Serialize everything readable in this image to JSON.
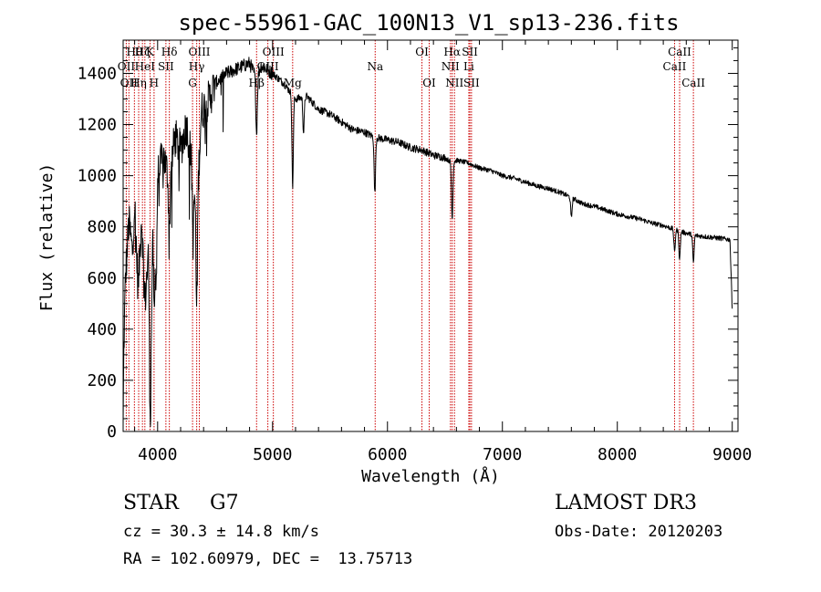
{
  "chart_data": {
    "type": "line",
    "title": "spec-55961-GAC_100N13_V1_sp13-236.fits",
    "xlabel": "Wavelength (Å)",
    "ylabel": "Flux (relative)",
    "xlim": [
      3700,
      9050
    ],
    "ylim": [
      0,
      1530
    ],
    "xticks": [
      4000,
      5000,
      6000,
      7000,
      8000,
      9000
    ],
    "yticks": [
      0,
      200,
      400,
      600,
      800,
      1000,
      1200,
      1400
    ],
    "continuum": [
      [
        3700,
        0
      ],
      [
        3705,
        300
      ],
      [
        3720,
        600
      ],
      [
        3750,
        820
      ],
      [
        3780,
        700
      ],
      [
        3800,
        900
      ],
      [
        3830,
        550
      ],
      [
        3860,
        850
      ],
      [
        3890,
        500
      ],
      [
        3920,
        700
      ],
      [
        3940,
        300
      ],
      [
        3960,
        820
      ],
      [
        3990,
        600
      ],
      [
        4000,
        1000
      ],
      [
        4050,
        1080
      ],
      [
        4100,
        980
      ],
      [
        4150,
        1150
      ],
      [
        4200,
        1100
      ],
      [
        4250,
        1200
      ],
      [
        4300,
        1050
      ],
      [
        4340,
        850
      ],
      [
        4380,
        1250
      ],
      [
        4450,
        1300
      ],
      [
        4500,
        1360
      ],
      [
        4600,
        1400
      ],
      [
        4700,
        1420
      ],
      [
        4800,
        1440
      ],
      [
        4860,
        1380
      ],
      [
        4900,
        1430
      ],
      [
        5000,
        1400
      ],
      [
        5100,
        1360
      ],
      [
        5200,
        1300
      ],
      [
        5300,
        1310
      ],
      [
        5400,
        1260
      ],
      [
        5500,
        1240
      ],
      [
        5600,
        1210
      ],
      [
        5700,
        1180
      ],
      [
        5800,
        1170
      ],
      [
        5890,
        1150
      ],
      [
        6000,
        1140
      ],
      [
        6100,
        1130
      ],
      [
        6200,
        1110
      ],
      [
        6300,
        1100
      ],
      [
        6400,
        1080
      ],
      [
        6500,
        1070
      ],
      [
        6563,
        1050
      ],
      [
        6600,
        1060
      ],
      [
        6700,
        1050
      ],
      [
        6800,
        1030
      ],
      [
        6900,
        1020
      ],
      [
        7000,
        1000
      ],
      [
        7100,
        990
      ],
      [
        7200,
        975
      ],
      [
        7300,
        960
      ],
      [
        7400,
        950
      ],
      [
        7500,
        935
      ],
      [
        7600,
        915
      ],
      [
        7700,
        890
      ],
      [
        7800,
        880
      ],
      [
        7900,
        865
      ],
      [
        8000,
        850
      ],
      [
        8100,
        840
      ],
      [
        8200,
        830
      ],
      [
        8300,
        815
      ],
      [
        8400,
        805
      ],
      [
        8500,
        790
      ],
      [
        8600,
        775
      ],
      [
        8700,
        765
      ],
      [
        8800,
        760
      ],
      [
        8900,
        755
      ],
      [
        8980,
        750
      ],
      [
        9000,
        480
      ]
    ],
    "absorption_features": [
      {
        "x": 3934,
        "depth": 320
      },
      {
        "x": 3969,
        "depth": 300
      },
      {
        "x": 4102,
        "depth": 220
      },
      {
        "x": 4308,
        "depth": 260
      },
      {
        "x": 4340,
        "depth": 380
      },
      {
        "x": 4861,
        "depth": 220
      },
      {
        "x": 5175,
        "depth": 360
      },
      {
        "x": 5270,
        "depth": 140
      },
      {
        "x": 5890,
        "depth": 220
      },
      {
        "x": 6563,
        "depth": 220
      },
      {
        "x": 7600,
        "depth": 80
      },
      {
        "x": 8498,
        "depth": 90
      },
      {
        "x": 8542,
        "depth": 110
      },
      {
        "x": 8662,
        "depth": 110
      }
    ],
    "spectral_lines": [
      {
        "x": 3727,
        "label": "OII",
        "row": 2
      },
      {
        "x": 3750,
        "label": "OII",
        "row": 3
      },
      {
        "x": 3798,
        "label": "Hθ",
        "row": 1
      },
      {
        "x": 3835,
        "label": "Hη",
        "row": 3
      },
      {
        "x": 3868,
        "label": "Hζ",
        "row": 1
      },
      {
        "x": 3889,
        "label": "HeI",
        "row": 2
      },
      {
        "x": 3934,
        "label": "K",
        "row": 1
      },
      {
        "x": 3969,
        "label": "H",
        "row": 3
      },
      {
        "x": 4072,
        "label": "SII",
        "row": 2
      },
      {
        "x": 4102,
        "label": "Hδ",
        "row": 1
      },
      {
        "x": 4304,
        "label": "G",
        "row": 3
      },
      {
        "x": 4340,
        "label": "Hγ",
        "row": 2
      },
      {
        "x": 4363,
        "label": "OIII",
        "row": 1
      },
      {
        "x": 4861,
        "label": "Hβ",
        "row": 3
      },
      {
        "x": 4959,
        "label": "OIII",
        "row": 2
      },
      {
        "x": 5007,
        "label": "OIII",
        "row": 1
      },
      {
        "x": 5175,
        "label": "Mg",
        "row": 3
      },
      {
        "x": 5893,
        "label": "Na",
        "row": 2
      },
      {
        "x": 6300,
        "label": "OI",
        "row": 1
      },
      {
        "x": 6363,
        "label": "OI",
        "row": 3
      },
      {
        "x": 6548,
        "label": "NII",
        "row": 2
      },
      {
        "x": 6563,
        "label": "Hα",
        "row": 1
      },
      {
        "x": 6583,
        "label": "NII",
        "row": 3
      },
      {
        "x": 6708,
        "label": "Li",
        "row": 2
      },
      {
        "x": 6717,
        "label": "SII",
        "row": 1
      },
      {
        "x": 6731,
        "label": "SII",
        "row": 3
      },
      {
        "x": 8498,
        "label": "CaII",
        "row": 2
      },
      {
        "x": 8542,
        "label": "CaII",
        "row": 1
      },
      {
        "x": 8662,
        "label": "CaII",
        "row": 3
      }
    ]
  },
  "info": {
    "class_label": "STAR",
    "subclass": "G7",
    "survey": "LAMOST DR3",
    "redshift_line": "cz = 30.3 ± 14.8 km/s",
    "obs_date": "Obs-Date: 20120203",
    "coords_line": "RA = 102.60979, DEC =  13.75713"
  },
  "colors": {
    "line_marker": "#cc0000",
    "spectrum": "#000000",
    "axes": "#000000"
  }
}
